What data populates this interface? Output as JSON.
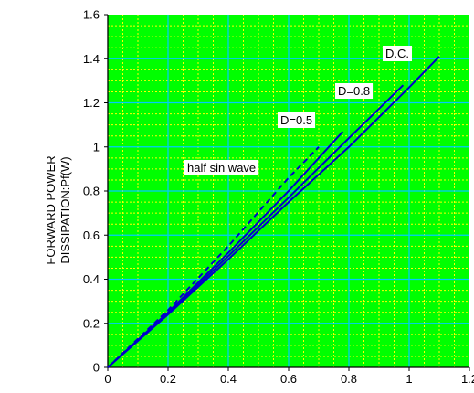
{
  "chart_data": {
    "type": "line",
    "title": "",
    "ylabel_lines": [
      "FORWARD POWER",
      "DISSIPATION:Pf(W)"
    ],
    "xlabel": "",
    "xlim": [
      0,
      1.2
    ],
    "ylim": [
      0,
      1.6
    ],
    "x_ticks": [
      "0",
      "0.2",
      "0.4",
      "0.6",
      "0.8",
      "1",
      "1.2"
    ],
    "y_ticks": [
      "0",
      "0.2",
      "0.4",
      "0.6",
      "0.8",
      "1",
      "1.2",
      "1.4",
      "1.6"
    ],
    "x_tick_values": [
      0,
      0.2,
      0.4,
      0.6,
      0.8,
      1.0,
      1.2
    ],
    "y_tick_values": [
      0,
      0.2,
      0.4,
      0.6,
      0.8,
      1.0,
      1.2,
      1.4,
      1.6
    ],
    "grid": true,
    "minor_divisions": 4,
    "colors": {
      "plot_background": "#00ff00",
      "minor_grid": "#ffff00",
      "major_grid": "#00ccff",
      "series": "#0000cc",
      "axis": "#000000"
    },
    "series": [
      {
        "label": "D.C.",
        "dashed": false,
        "x": [
          0,
          0.2,
          0.4,
          0.6,
          0.8,
          1.0,
          1.1
        ],
        "y": [
          0,
          0.24,
          0.49,
          0.75,
          1.0,
          1.27,
          1.41
        ]
      },
      {
        "label": "D=0.8",
        "dashed": false,
        "x": [
          0,
          0.2,
          0.4,
          0.6,
          0.8,
          0.98
        ],
        "y": [
          0,
          0.245,
          0.505,
          0.77,
          1.04,
          1.28
        ]
      },
      {
        "label": "D=0.5",
        "dashed": false,
        "x": [
          0,
          0.2,
          0.4,
          0.6,
          0.78
        ],
        "y": [
          0,
          0.25,
          0.52,
          0.8,
          1.07
        ]
      },
      {
        "label": "half sin wave",
        "dashed": true,
        "x": [
          0,
          0.2,
          0.4,
          0.6,
          0.7
        ],
        "y": [
          0,
          0.26,
          0.55,
          0.86,
          1.0
        ]
      }
    ],
    "annotations": [
      "D.C.",
      "D=0.8",
      "D=0.5",
      "half sin wave"
    ]
  }
}
